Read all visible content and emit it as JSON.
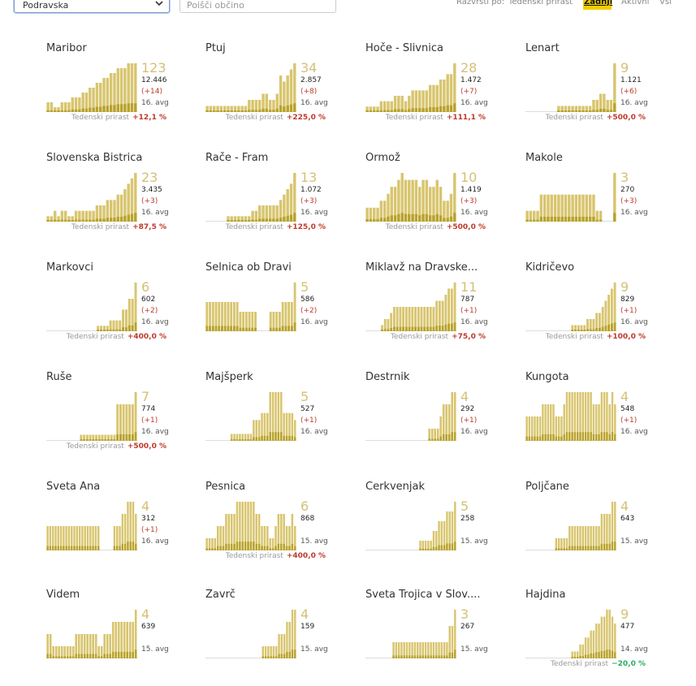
{
  "toolbar": {
    "region_value": "Podravska",
    "search_placeholder": "Poišči občino",
    "sort_label": "Razvrsti po:",
    "sort_options": [
      "Tedenski prirast",
      "Zadnji",
      "Aktivni",
      "Vsi"
    ],
    "sort_active": "Zadnji"
  },
  "colors": {
    "bar": "#d8c56e",
    "bar_dark": "#b8a22a",
    "accent": "#f2cf00",
    "increase": "#c0392b",
    "decrease": "#27ae60"
  },
  "growth_label": "Tedenski prirast",
  "municipalities": [
    {
      "name": "Maribor",
      "active": "123",
      "total": "12.446",
      "delta": "(+14)",
      "avg": "16. avg",
      "growth": "+12,1 %",
      "dir": "up",
      "series": [
        2,
        2,
        1,
        1,
        2,
        2,
        2,
        3,
        3,
        3,
        4,
        4,
        5,
        5,
        6,
        6,
        7,
        7,
        8,
        8,
        9,
        9,
        9,
        10,
        10,
        10
      ]
    },
    {
      "name": "Ptuj",
      "active": "34",
      "total": "2.857",
      "delta": "(+8)",
      "avg": "16. avg",
      "growth": "+225,0 %",
      "dir": "up",
      "series": [
        1,
        1,
        1,
        1,
        1,
        1,
        1,
        1,
        1,
        1,
        1,
        1,
        2,
        2,
        2,
        2,
        3,
        3,
        2,
        2,
        3,
        6,
        5,
        6,
        7,
        8
      ]
    },
    {
      "name": "Hoče - Slivnica",
      "active": "28",
      "total": "1.472",
      "delta": "(+7)",
      "avg": "16. avg",
      "growth": "+111,1 %",
      "dir": "up",
      "series": [
        1,
        1,
        1,
        1,
        2,
        2,
        2,
        2,
        3,
        3,
        3,
        2,
        3,
        4,
        4,
        4,
        4,
        4,
        5,
        5,
        5,
        6,
        6,
        7,
        7,
        9
      ]
    },
    {
      "name": "Lenart",
      "active": "9",
      "total": "1.121",
      "delta": "(+6)",
      "avg": "16. avg",
      "growth": "+500,0 %",
      "dir": "up",
      "series": [
        0,
        0,
        0,
        0,
        0,
        0,
        0,
        0,
        0,
        1,
        1,
        1,
        1,
        1,
        1,
        1,
        1,
        1,
        1,
        2,
        2,
        3,
        3,
        2,
        2,
        8
      ]
    },
    {
      "name": "Slovenska Bistrica",
      "active": "23",
      "total": "3.435",
      "delta": "(+3)",
      "avg": "16. avg",
      "growth": "+87,5 %",
      "dir": "up",
      "series": [
        1,
        1,
        2,
        1,
        2,
        2,
        1,
        1,
        2,
        2,
        2,
        2,
        2,
        2,
        3,
        3,
        3,
        4,
        4,
        4,
        5,
        5,
        6,
        7,
        8,
        9
      ]
    },
    {
      "name": "Rače - Fram",
      "active": "13",
      "total": "1.072",
      "delta": "(+3)",
      "avg": "16. avg",
      "growth": "+125,0 %",
      "dir": "up",
      "series": [
        0,
        0,
        0,
        0,
        0,
        0,
        1,
        1,
        1,
        1,
        1,
        1,
        1,
        2,
        2,
        3,
        3,
        3,
        3,
        3,
        3,
        4,
        5,
        6,
        7,
        9
      ]
    },
    {
      "name": "Ormož",
      "active": "10",
      "total": "1.419",
      "delta": "(+3)",
      "avg": "16. avg",
      "growth": "+500,0 %",
      "dir": "up",
      "series": [
        2,
        2,
        2,
        2,
        3,
        3,
        4,
        5,
        5,
        6,
        7,
        6,
        6,
        6,
        6,
        5,
        6,
        6,
        5,
        5,
        6,
        5,
        3,
        3,
        4,
        7
      ]
    },
    {
      "name": "Makole",
      "active": "3",
      "total": "270",
      "delta": "(+3)",
      "avg": "16. avg",
      "growth": "",
      "dir": "",
      "series": [
        2,
        2,
        2,
        2,
        5,
        5,
        5,
        5,
        5,
        5,
        5,
        5,
        5,
        5,
        5,
        5,
        5,
        5,
        5,
        5,
        2,
        2,
        0,
        0,
        0,
        9
      ]
    },
    {
      "name": "Markovci",
      "active": "6",
      "total": "602",
      "delta": "(+2)",
      "avg": "16. avg",
      "growth": "+400,0 %",
      "dir": "up",
      "series": [
        0,
        0,
        0,
        0,
        0,
        0,
        0,
        0,
        0,
        0,
        0,
        0,
        0,
        0,
        0,
        0,
        1,
        1,
        1,
        1,
        2,
        2,
        2,
        2,
        4,
        4,
        6,
        6,
        9
      ]
    },
    {
      "name": "Selnica ob Dravi",
      "active": "5",
      "total": "586",
      "delta": "(+2)",
      "avg": "16. avg",
      "growth": "",
      "dir": "",
      "series": [
        3,
        3,
        3,
        3,
        3,
        3,
        3,
        3,
        3,
        3,
        3,
        2,
        2,
        2,
        2,
        2,
        2,
        0,
        0,
        0,
        0,
        2,
        2,
        2,
        2,
        3,
        3,
        3,
        3,
        5
      ]
    },
    {
      "name": "Miklavž na Dravske...",
      "active": "11",
      "total": "787",
      "delta": "(+1)",
      "avg": "16. avg",
      "growth": "+75,0 %",
      "dir": "up",
      "series": [
        0,
        0,
        0,
        0,
        0,
        1,
        2,
        2,
        3,
        4,
        4,
        4,
        4,
        4,
        4,
        4,
        4,
        4,
        4,
        4,
        4,
        4,
        4,
        5,
        5,
        5,
        6,
        7,
        7,
        8
      ]
    },
    {
      "name": "Kidričevo",
      "active": "9",
      "total": "829",
      "delta": "(+1)",
      "avg": "16. avg",
      "growth": "+100,0 %",
      "dir": "up",
      "series": [
        0,
        0,
        0,
        0,
        0,
        0,
        0,
        0,
        0,
        0,
        0,
        0,
        0,
        0,
        0,
        1,
        1,
        1,
        1,
        1,
        2,
        2,
        2,
        3,
        3,
        4,
        5,
        6,
        7,
        8
      ]
    },
    {
      "name": "Ruše",
      "active": "7",
      "total": "774",
      "delta": "(+1)",
      "avg": "16. avg",
      "growth": "+500,0 %",
      "dir": "up",
      "series": [
        0,
        0,
        0,
        0,
        0,
        0,
        0,
        0,
        0,
        0,
        0,
        1,
        1,
        1,
        1,
        1,
        1,
        1,
        1,
        1,
        1,
        1,
        1,
        6,
        6,
        6,
        6,
        6,
        6,
        8
      ]
    },
    {
      "name": "Majšperk",
      "active": "5",
      "total": "527",
      "delta": "(+1)",
      "avg": "16. avg",
      "growth": "",
      "dir": "",
      "series": [
        0,
        0,
        0,
        0,
        0,
        0,
        0,
        0,
        0,
        1,
        1,
        1,
        1,
        1,
        1,
        1,
        1,
        3,
        3,
        3,
        4,
        4,
        4,
        7,
        7,
        7,
        7,
        7,
        4,
        4,
        4,
        4,
        3
      ]
    },
    {
      "name": "Destrnik",
      "active": "4",
      "total": "292",
      "delta": "(+1)",
      "avg": "16. avg",
      "growth": "",
      "dir": "",
      "series": [
        0,
        0,
        0,
        0,
        0,
        0,
        0,
        0,
        0,
        0,
        0,
        0,
        0,
        0,
        0,
        0,
        0,
        0,
        0,
        0,
        0,
        0,
        1,
        1,
        1,
        1,
        2,
        3,
        3,
        3,
        4,
        4
      ]
    },
    {
      "name": "Kungota",
      "active": "4",
      "total": "548",
      "delta": "(+1)",
      "avg": "16. avg",
      "growth": "",
      "dir": "",
      "series": [
        2,
        2,
        2,
        2,
        2,
        2,
        3,
        3,
        3,
        3,
        3,
        2,
        2,
        2,
        3,
        4,
        4,
        4,
        4,
        4,
        4,
        4,
        4,
        4,
        4,
        3,
        3,
        3,
        4,
        4,
        4,
        3,
        4,
        3
      ]
    },
    {
      "name": "Sveta Ana",
      "active": "4",
      "total": "312",
      "delta": "(+1)",
      "avg": "16. avg",
      "growth": "",
      "dir": "",
      "series": [
        2,
        2,
        2,
        2,
        2,
        2,
        2,
        2,
        2,
        2,
        2,
        2,
        2,
        2,
        2,
        2,
        2,
        2,
        2,
        2,
        0,
        0,
        0,
        0,
        0,
        2,
        2,
        2,
        3,
        3,
        4,
        4,
        4,
        3
      ]
    },
    {
      "name": "Pesnica",
      "active": "6",
      "total": "868",
      "delta": "",
      "avg": "15. avg",
      "growth": "+400,0 %",
      "dir": "up",
      "series": [
        1,
        1,
        1,
        1,
        2,
        2,
        2,
        3,
        3,
        3,
        3,
        4,
        4,
        4,
        4,
        4,
        4,
        4,
        3,
        3,
        2,
        2,
        2,
        1,
        1,
        2,
        3,
        3,
        3,
        2,
        2,
        3,
        2
      ]
    },
    {
      "name": "Cerkvenjak",
      "active": "5",
      "total": "258",
      "delta": "",
      "avg": "15. avg",
      "growth": "",
      "dir": "",
      "series": [
        0,
        0,
        0,
        0,
        0,
        0,
        0,
        0,
        0,
        0,
        0,
        0,
        0,
        0,
        0,
        0,
        0,
        0,
        0,
        0,
        1,
        1,
        1,
        1,
        1,
        2,
        2,
        3,
        3,
        3,
        4,
        4,
        4,
        5
      ]
    },
    {
      "name": "Poljčane",
      "active": "4",
      "total": "643",
      "delta": "",
      "avg": "15. avg",
      "growth": "",
      "dir": "",
      "series": [
        0,
        0,
        0,
        0,
        0,
        0,
        0,
        0,
        0,
        0,
        0,
        1,
        1,
        1,
        1,
        1,
        2,
        2,
        2,
        2,
        2,
        2,
        2,
        2,
        2,
        2,
        2,
        2,
        3,
        3,
        3,
        3,
        4,
        4
      ]
    },
    {
      "name": "Videm",
      "active": "4",
      "total": "639",
      "delta": "",
      "avg": "15. avg",
      "growth": "",
      "dir": "",
      "series": [
        2,
        2,
        1,
        1,
        1,
        1,
        1,
        1,
        1,
        1,
        2,
        2,
        2,
        2,
        2,
        2,
        2,
        2,
        1,
        1,
        2,
        2,
        2,
        3,
        3,
        3,
        3,
        3,
        3,
        3,
        3,
        4
      ]
    },
    {
      "name": "Zavrč",
      "active": "4",
      "total": "159",
      "delta": "",
      "avg": "15. avg",
      "growth": "",
      "dir": "",
      "series": [
        0,
        0,
        0,
        0,
        0,
        0,
        0,
        0,
        0,
        0,
        0,
        0,
        0,
        0,
        0,
        0,
        0,
        0,
        0,
        0,
        0,
        1,
        1,
        1,
        1,
        1,
        1,
        2,
        2,
        2,
        3,
        3,
        4,
        4
      ]
    },
    {
      "name": "Sveta Trojica v Slov....",
      "active": "3",
      "total": "267",
      "delta": "",
      "avg": "15. avg",
      "growth": "",
      "dir": "",
      "series": [
        0,
        0,
        0,
        0,
        0,
        0,
        0,
        0,
        0,
        0,
        1,
        1,
        1,
        1,
        1,
        1,
        1,
        1,
        1,
        1,
        1,
        1,
        1,
        1,
        1,
        1,
        1,
        1,
        1,
        1,
        1,
        2,
        2,
        3
      ]
    },
    {
      "name": "Hajdina",
      "active": "9",
      "total": "477",
      "delta": "",
      "avg": "14. avg",
      "growth": "−20,0 %",
      "dir": "down",
      "series": [
        0,
        0,
        0,
        0,
        0,
        0,
        0,
        0,
        0,
        0,
        0,
        0,
        0,
        0,
        0,
        0,
        0,
        1,
        1,
        1,
        2,
        2,
        3,
        3,
        4,
        4,
        5,
        5,
        6,
        6,
        7,
        7,
        6,
        5
      ]
    }
  ]
}
